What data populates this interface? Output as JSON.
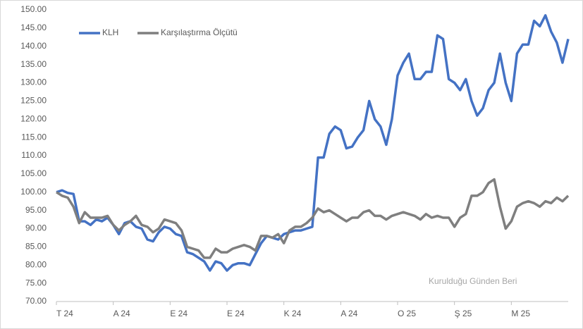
{
  "chart_data": {
    "type": "line",
    "annotation": "Kurulduğu Günden Beri",
    "x": [
      0,
      1,
      2,
      3,
      4,
      5,
      6,
      7,
      8,
      9,
      10,
      11,
      12,
      13,
      14,
      15,
      16,
      17,
      18,
      19,
      20,
      21,
      22,
      23,
      24,
      25,
      26,
      27,
      28,
      29,
      30,
      31,
      32,
      33,
      34,
      35,
      36,
      37,
      38,
      39,
      40,
      41,
      42,
      43,
      44,
      45,
      46,
      47,
      48,
      49,
      50,
      51,
      52,
      53,
      54,
      55,
      56,
      57,
      58,
      59,
      60,
      61,
      62,
      63,
      64,
      65,
      66,
      67,
      68,
      69,
      70,
      71,
      72,
      73,
      74,
      75,
      76,
      77,
      78,
      79,
      80,
      81,
      82,
      83,
      84,
      85,
      86,
      87,
      88,
      89,
      90
    ],
    "xlim": [
      0,
      90
    ],
    "xticks": [
      {
        "value": 0,
        "label": "T 24"
      },
      {
        "value": 10,
        "label": "A 24"
      },
      {
        "value": 20,
        "label": "E 24"
      },
      {
        "value": 30,
        "label": "E 24"
      },
      {
        "value": 40,
        "label": "K 24"
      },
      {
        "value": 50,
        "label": "A 24"
      },
      {
        "value": 60,
        "label": "O 25"
      },
      {
        "value": 70,
        "label": "Ş 25"
      },
      {
        "value": 80,
        "label": "M 25"
      }
    ],
    "ylim": [
      70,
      150
    ],
    "yticks": [
      {
        "value": 70,
        "label": "70.00"
      },
      {
        "value": 75,
        "label": "75.00"
      },
      {
        "value": 80,
        "label": "80.00"
      },
      {
        "value": 85,
        "label": "85.00"
      },
      {
        "value": 90,
        "label": "90.00"
      },
      {
        "value": 95,
        "label": "95.00"
      },
      {
        "value": 100,
        "label": "100.00"
      },
      {
        "value": 105,
        "label": "105.00"
      },
      {
        "value": 110,
        "label": "110.00"
      },
      {
        "value": 115,
        "label": "115.00"
      },
      {
        "value": 120,
        "label": "120.00"
      },
      {
        "value": 125,
        "label": "125.00"
      },
      {
        "value": 130,
        "label": "130.00"
      },
      {
        "value": 135,
        "label": "135.00"
      },
      {
        "value": 140,
        "label": "140.00"
      },
      {
        "value": 145,
        "label": "145.00"
      },
      {
        "value": 150,
        "label": "150.00"
      }
    ],
    "grid": false,
    "legend": "top-left",
    "series": [
      {
        "name": "KLH",
        "color": "#4472c4",
        "values": [
          100,
          100.5,
          99.8,
          99.5,
          92,
          92,
          91,
          92.5,
          92,
          93,
          91,
          88.5,
          91.5,
          92,
          90.5,
          90,
          87,
          86.5,
          89,
          90.5,
          90,
          88.5,
          88,
          83.5,
          83,
          82,
          81,
          78.5,
          81,
          80.5,
          78.5,
          80,
          80.5,
          80.5,
          80,
          83,
          86,
          88,
          87.5,
          87,
          88.5,
          89,
          89.5,
          89.5,
          90,
          90.5,
          109.5,
          109.5,
          116,
          118,
          117,
          112,
          112.5,
          115,
          117,
          125,
          120,
          118,
          113,
          120,
          132,
          135.5,
          138,
          131,
          131,
          133,
          133,
          143,
          142,
          131,
          130,
          128,
          131,
          125,
          121,
          123,
          128,
          130,
          138,
          130,
          125,
          138,
          140.5,
          140.5,
          147,
          145.5,
          148.5,
          144,
          141,
          135.5,
          142
        ]
      },
      {
        "name": "Karşılaştırma Ölçütü",
        "color": "#7f7f7f",
        "values": [
          100,
          99,
          98.5,
          96,
          91.5,
          94.5,
          93,
          93,
          93,
          93.5,
          91,
          89.5,
          91,
          92,
          93.5,
          91,
          90.5,
          89,
          90,
          92.5,
          92,
          91.5,
          89.5,
          85,
          84.5,
          84,
          82,
          82,
          84.5,
          83.5,
          83.5,
          84.5,
          85,
          85.5,
          85,
          84,
          88,
          88,
          87.5,
          88.5,
          86,
          89.5,
          90.5,
          90.5,
          91.5,
          93,
          95.5,
          94.5,
          95,
          94,
          93,
          92,
          93,
          93,
          94.5,
          95,
          93.5,
          93.5,
          92.5,
          93.5,
          94,
          94.5,
          94,
          93.5,
          92.5,
          94,
          93,
          93.5,
          93,
          93,
          90.5,
          93,
          94,
          99,
          99,
          100,
          102.5,
          103.5,
          96,
          90,
          92,
          96,
          97,
          97.5,
          97,
          96,
          97.5,
          97,
          98.5,
          97.5,
          99
        ]
      }
    ]
  }
}
